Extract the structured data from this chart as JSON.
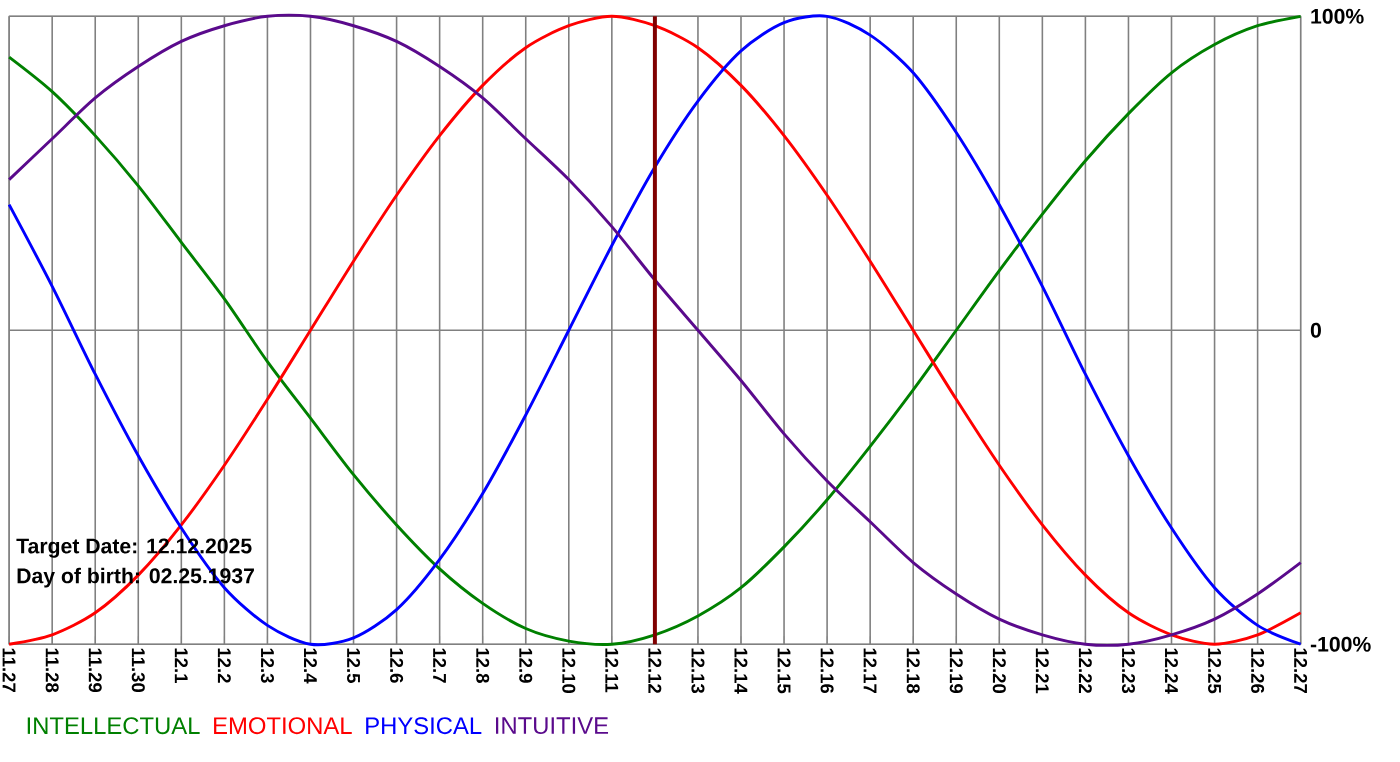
{
  "chart_data": {
    "type": "line",
    "categories": [
      "11.27",
      "11.28",
      "11.29",
      "11.30",
      "12.1",
      "12.2",
      "12.3",
      "12.4",
      "12.5",
      "12.6",
      "12.7",
      "12.8",
      "12.9",
      "12.10",
      "12.11",
      "12.12",
      "12.13",
      "12.14",
      "12.15",
      "12.16",
      "12.17",
      "12.18",
      "12.19",
      "12.20",
      "12.21",
      "12.22",
      "12.23",
      "12.24",
      "12.25",
      "12.26",
      "12.27"
    ],
    "series": [
      {
        "name": "INTELLECTUAL",
        "color": "#008000",
        "values": [
          87,
          76,
          62,
          46,
          28,
          10,
          -10,
          -28,
          -46,
          -62,
          -76,
          -87,
          -95,
          -99,
          -100,
          -97,
          -91,
          -82,
          -69,
          -54,
          -37,
          -19,
          0,
          19,
          37,
          54,
          69,
          82,
          91,
          97,
          100
        ]
      },
      {
        "name": "EMOTIONAL",
        "color": "#ff0000",
        "values": [
          -100,
          -97,
          -90,
          -78,
          -62,
          -43,
          -22,
          0,
          22,
          43,
          62,
          78,
          90,
          97,
          100,
          97,
          90,
          78,
          62,
          43,
          22,
          0,
          -22,
          -43,
          -62,
          -78,
          -90,
          -97,
          -100,
          -97,
          -90
        ]
      },
      {
        "name": "PHYSICAL",
        "color": "#0000ff",
        "values": [
          40,
          14,
          -14,
          -40,
          -63,
          -82,
          -94,
          -100,
          -98,
          -89,
          -73,
          -52,
          -27,
          0,
          27,
          52,
          73,
          89,
          98,
          100,
          94,
          82,
          63,
          40,
          14,
          -14,
          -40,
          -63,
          -82,
          -94,
          -100
        ]
      },
      {
        "name": "INTUITIVE",
        "color": "#5a0a8c",
        "values": [
          48,
          61,
          74,
          84,
          92,
          97,
          100,
          100,
          97,
          92,
          84,
          74,
          61,
          48,
          33,
          16,
          0,
          -16,
          -33,
          -48,
          -61,
          -74,
          -84,
          -92,
          -97,
          -100,
          -100,
          -97,
          -92,
          -84,
          -74
        ]
      }
    ],
    "ylim": [
      -100,
      100
    ],
    "yticks": [
      {
        "value": -100,
        "label": "-100%"
      },
      0,
      {
        "value": 100,
        "label": "100%"
      }
    ],
    "grid": true,
    "legend": "bottom",
    "marker": "none",
    "ref_lines": [
      {
        "axis": "x",
        "value": "12.12",
        "color": "#800000"
      }
    ],
    "annotations": [
      "Target Date: 12.12.2025",
      "Day of birth: 02.25.1937"
    ]
  }
}
